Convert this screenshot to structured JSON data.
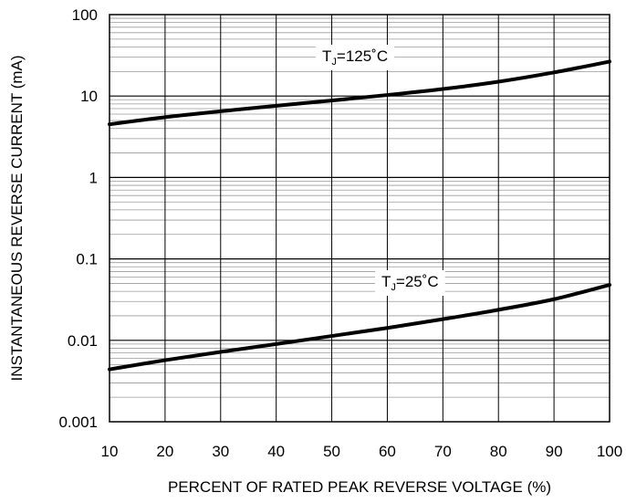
{
  "chart_data": {
    "type": "line",
    "xlabel": "PERCENT OF RATED PEAK REVERSE VOLTAGE (%)",
    "ylabel": "INSTANTANEOUS REVERSE CURRENT (mA)",
    "x_ticks": [
      "10",
      "20",
      "30",
      "40",
      "50",
      "60",
      "70",
      "80",
      "90",
      "100"
    ],
    "y_ticks": [
      "0.001",
      "0.01",
      "0.1",
      "1",
      "10",
      "100"
    ],
    "xlim": [
      10,
      100
    ],
    "ylim": [
      0.001,
      100
    ],
    "y_scale": "log",
    "grid": true,
    "series": [
      {
        "label_main": "T",
        "label_sub": "J",
        "label_rest": "=125˚C",
        "x": [
          10,
          20,
          30,
          40,
          50,
          60,
          70,
          80,
          90,
          100
        ],
        "y": [
          4.5,
          5.5,
          6.5,
          7.6,
          8.8,
          10.3,
          12.2,
          15.0,
          19.5,
          26.5
        ]
      },
      {
        "label_main": "T",
        "label_sub": "J",
        "label_rest": "=25˚C",
        "x": [
          10,
          20,
          30,
          40,
          50,
          60,
          70,
          80,
          90,
          100
        ],
        "y": [
          0.0044,
          0.0057,
          0.0072,
          0.009,
          0.0113,
          0.0142,
          0.0182,
          0.0237,
          0.032,
          0.048
        ]
      }
    ]
  }
}
